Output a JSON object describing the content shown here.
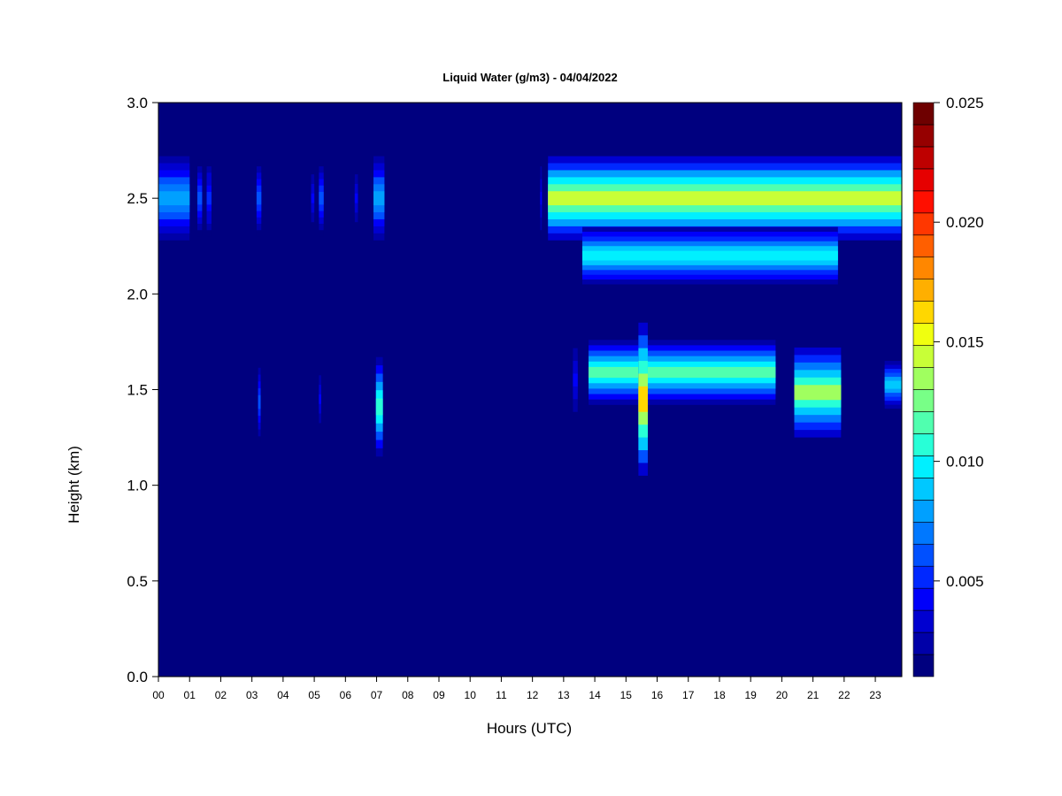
{
  "chart_data": {
    "type": "heatmap",
    "title": "Liquid Water (g/m3) - 04/04/2022",
    "xlabel": "Hours (UTC)",
    "ylabel": "Height (km)",
    "x_ticks": [
      "00",
      "01",
      "02",
      "03",
      "04",
      "05",
      "06",
      "07",
      "08",
      "09",
      "10",
      "11",
      "12",
      "13",
      "14",
      "15",
      "16",
      "17",
      "18",
      "19",
      "20",
      "21",
      "22",
      "23"
    ],
    "x_range": [
      0,
      23.85
    ],
    "y_ticks": [
      "0.0",
      "0.5",
      "1.0",
      "1.5",
      "2.0",
      "2.5",
      "3.0"
    ],
    "y_range": [
      0,
      3.0
    ],
    "colorbar": {
      "range": [
        0.001,
        0.025
      ],
      "ticks": [
        "0.005",
        "0.010",
        "0.015",
        "0.020",
        "0.025"
      ],
      "tick_values": [
        0.005,
        0.01,
        0.015,
        0.02,
        0.025
      ],
      "colors": [
        "#00007f",
        "#0000a8",
        "#0000d0",
        "#0000fa",
        "#0028ff",
        "#0050ff",
        "#0078ff",
        "#00a0ff",
        "#00c8ff",
        "#00f0ff",
        "#28ffd7",
        "#50ffaf",
        "#78ff87",
        "#a0ff5f",
        "#c8ff37",
        "#f0ff0f",
        "#ffd700",
        "#ffaf00",
        "#ff8700",
        "#ff5f00",
        "#ff3700",
        "#ff0f00",
        "#e60000",
        "#be0000",
        "#960000",
        "#6e0000"
      ]
    },
    "background_value": 0.001,
    "features": [
      {
        "name": "upper-layer-early",
        "t_start": 0.0,
        "t_end": 1.0,
        "h_bottom": 2.28,
        "h_top": 2.72,
        "peak": 0.008
      },
      {
        "name": "upper-band-1.3h",
        "t_start": 1.25,
        "t_end": 1.4,
        "h_bottom": 2.3,
        "h_top": 2.7,
        "peak": 0.006
      },
      {
        "name": "upper-band-1.6h",
        "t_start": 1.55,
        "t_end": 1.7,
        "h_bottom": 2.3,
        "h_top": 2.7,
        "peak": 0.005
      },
      {
        "name": "upper-band-3.2h",
        "t_start": 3.15,
        "t_end": 3.3,
        "h_bottom": 2.3,
        "h_top": 2.7,
        "peak": 0.006
      },
      {
        "name": "upper-band-4.9h",
        "t_start": 4.9,
        "t_end": 5.0,
        "h_bottom": 2.35,
        "h_top": 2.65,
        "peak": 0.004
      },
      {
        "name": "upper-band-5.2h",
        "t_start": 5.15,
        "t_end": 5.3,
        "h_bottom": 2.3,
        "h_top": 2.7,
        "peak": 0.006
      },
      {
        "name": "upper-band-6.3h",
        "t_start": 6.3,
        "t_end": 6.4,
        "h_bottom": 2.35,
        "h_top": 2.65,
        "peak": 0.004
      },
      {
        "name": "upper-band-7.1h",
        "t_start": 6.9,
        "t_end": 7.25,
        "h_bottom": 2.28,
        "h_top": 2.72,
        "peak": 0.008
      },
      {
        "name": "upper-band-12.3h",
        "t_start": 12.25,
        "t_end": 12.3,
        "h_bottom": 2.3,
        "h_top": 2.7,
        "peak": 0.004
      },
      {
        "name": "upper-layer-afternoon",
        "t_start": 12.5,
        "t_end": 23.85,
        "h_bottom": 2.28,
        "h_top": 2.72,
        "peak": 0.014
      },
      {
        "name": "upper-layer-extension",
        "t_start": 13.6,
        "t_end": 21.8,
        "h_bottom": 2.05,
        "h_top": 2.35,
        "peak": 0.01
      },
      {
        "name": "lower-cloud-3.2h",
        "t_start": 3.2,
        "t_end": 3.28,
        "h_bottom": 1.22,
        "h_top": 1.65,
        "peak": 0.006
      },
      {
        "name": "lower-cloud-5.2h",
        "t_start": 5.15,
        "t_end": 5.22,
        "h_bottom": 1.3,
        "h_top": 1.6,
        "peak": 0.004
      },
      {
        "name": "lower-cloud-7.1h",
        "t_start": 6.98,
        "t_end": 7.2,
        "h_bottom": 1.15,
        "h_top": 1.67,
        "peak": 0.011
      },
      {
        "name": "lower-cloud-13.4h",
        "t_start": 13.3,
        "t_end": 13.45,
        "h_bottom": 1.35,
        "h_top": 1.75,
        "peak": 0.004
      },
      {
        "name": "lower-cloud-main",
        "t_start": 13.8,
        "t_end": 19.8,
        "h_bottom": 1.42,
        "h_top": 1.76,
        "peak": 0.012
      },
      {
        "name": "lower-cloud-spike-15.6h",
        "t_start": 15.4,
        "t_end": 15.7,
        "h_bottom": 1.05,
        "h_top": 1.85,
        "peak": 0.016
      },
      {
        "name": "lower-cloud-20-22h",
        "t_start": 20.4,
        "t_end": 21.9,
        "h_bottom": 1.25,
        "h_top": 1.72,
        "peak": 0.013
      },
      {
        "name": "lower-cloud-23.5h",
        "t_start": 23.3,
        "t_end": 23.85,
        "h_bottom": 1.4,
        "h_top": 1.65,
        "peak": 0.009
      }
    ]
  }
}
